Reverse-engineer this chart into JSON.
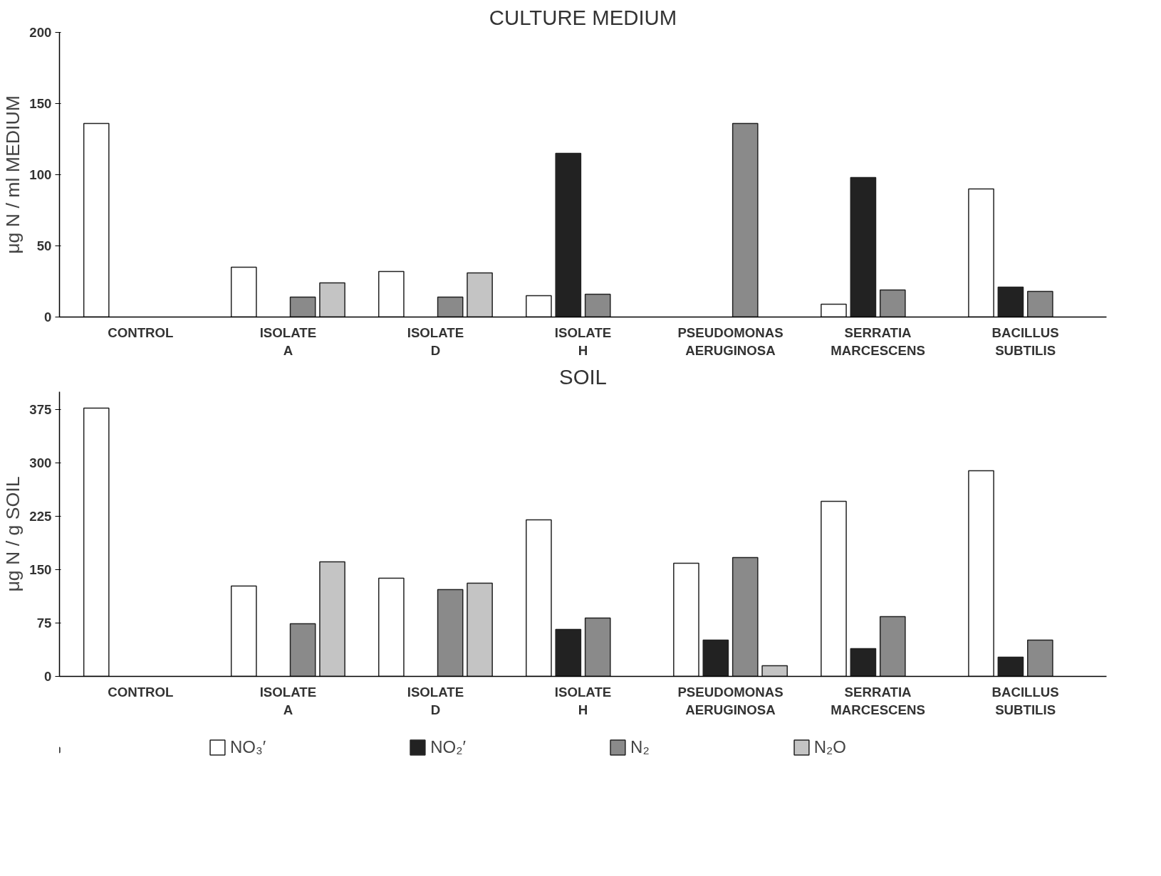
{
  "chart_data": [
    {
      "type": "bar",
      "title": "CULTURE MEDIUM",
      "ylabel": "μg N / ml MEDIUM",
      "categories": [
        "CONTROL",
        "ISOLATE A",
        "ISOLATE D",
        "ISOLATE H",
        "PSEUDOMONAS AERUGINOSA",
        "SERRATIA MARCESCENS",
        "BACILLUS SUBTILIS"
      ],
      "series": [
        {
          "color": "#ffffff",
          "values": [
            136,
            35,
            32,
            15,
            null,
            9,
            90
          ]
        },
        {
          "color": "#222222",
          "values": [
            null,
            null,
            null,
            115,
            null,
            98,
            21
          ]
        },
        {
          "color": "#8a8a8a",
          "values": [
            null,
            14,
            14,
            16,
            136,
            19,
            18
          ]
        },
        {
          "color": "#c4c4c4",
          "values": [
            null,
            24,
            31,
            null,
            null,
            null,
            null
          ]
        }
      ],
      "ylim": [
        0,
        200
      ],
      "yticks": [
        0,
        50,
        100,
        150,
        200
      ],
      "grid": false,
      "legend": false
    },
    {
      "type": "bar",
      "title": "SOIL",
      "ylabel": "μg N / g SOIL",
      "categories": [
        "CONTROL",
        "ISOLATE A",
        "ISOLATE D",
        "ISOLATE H",
        "PSEUDOMONAS AERUGINOSA",
        "SERRATIA MARCESCENS",
        "BACILLUS SUBTILIS"
      ],
      "series": [
        {
          "name": "NO₃′",
          "color": "#ffffff",
          "values": [
            377,
            127,
            138,
            220,
            159,
            246,
            289
          ]
        },
        {
          "name": "NO₂′",
          "color": "#222222",
          "values": [
            null,
            null,
            null,
            66,
            51,
            39,
            27
          ]
        },
        {
          "name": "N₂",
          "color": "#8a8a8a",
          "values": [
            null,
            74,
            122,
            82,
            167,
            84,
            51
          ]
        },
        {
          "name": "N₂O",
          "color": "#c4c4c4",
          "values": [
            null,
            161,
            131,
            null,
            15,
            null,
            null
          ]
        }
      ],
      "ylim": [
        0,
        400
      ],
      "yticks": [
        0,
        75,
        150,
        225,
        300,
        375
      ],
      "grid": false,
      "legend": "bottom"
    }
  ]
}
